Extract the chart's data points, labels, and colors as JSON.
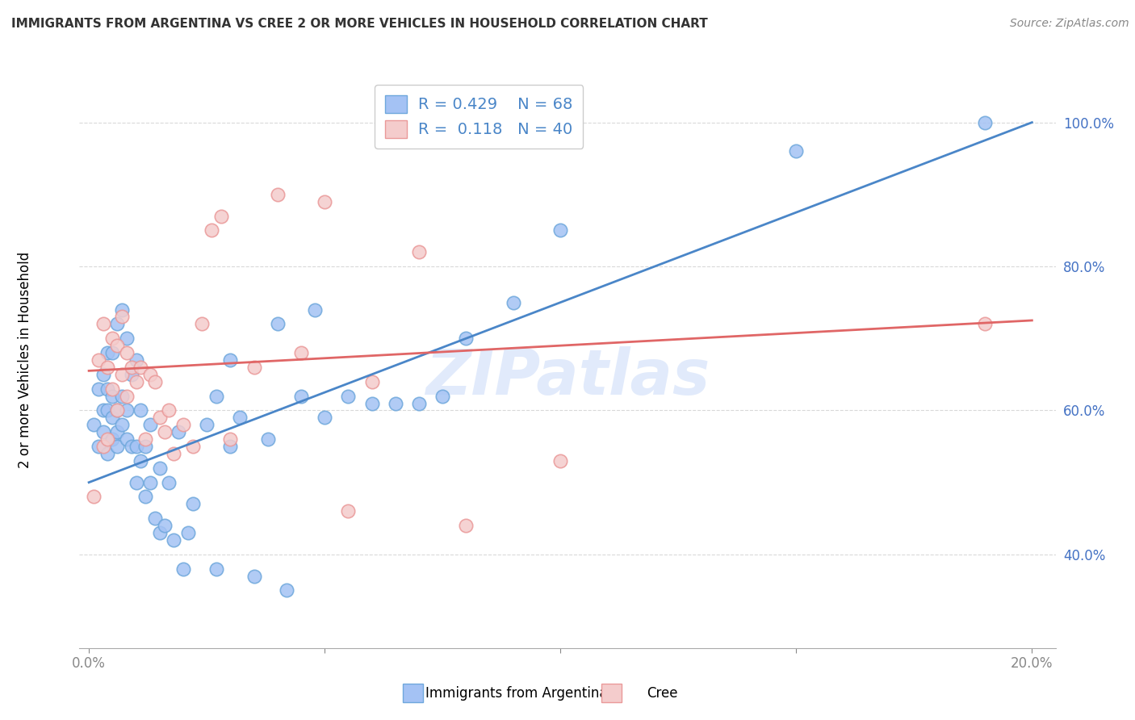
{
  "title": "IMMIGRANTS FROM ARGENTINA VS CREE 2 OR MORE VEHICLES IN HOUSEHOLD CORRELATION CHART",
  "source": "Source: ZipAtlas.com",
  "ylabel": "2 or more Vehicles in Household",
  "xlabel_vals": [
    0.0,
    0.05,
    0.1,
    0.15,
    0.2
  ],
  "xlabel_ticks_show": [
    "0.0%",
    "",
    "",
    "",
    "20.0%"
  ],
  "ylabel_ticks": [
    "40.0%",
    "60.0%",
    "80.0%",
    "100.0%"
  ],
  "ylabel_vals": [
    0.4,
    0.6,
    0.8,
    1.0
  ],
  "xlim": [
    -0.002,
    0.205
  ],
  "ylim": [
    0.27,
    1.07
  ],
  "legend_r1": "R = 0.429",
  "legend_n1": "N = 68",
  "legend_r2": "R =  0.118",
  "legend_n2": "N = 40",
  "blue_color": "#a4c2f4",
  "pink_color": "#f4cccc",
  "blue_dot_edge": "#6fa8dc",
  "pink_dot_edge": "#ea9999",
  "blue_line_color": "#4a86c8",
  "pink_line_color": "#e06666",
  "axis_tick_color": "#4472c4",
  "title_color": "#333333",
  "watermark_color": "#c9daf8",
  "watermark": "ZIPatlas",
  "argentina_x": [
    0.001,
    0.002,
    0.002,
    0.003,
    0.003,
    0.003,
    0.004,
    0.004,
    0.004,
    0.004,
    0.005,
    0.005,
    0.005,
    0.005,
    0.006,
    0.006,
    0.006,
    0.006,
    0.007,
    0.007,
    0.007,
    0.008,
    0.008,
    0.008,
    0.009,
    0.009,
    0.01,
    0.01,
    0.01,
    0.011,
    0.011,
    0.012,
    0.012,
    0.013,
    0.013,
    0.014,
    0.015,
    0.015,
    0.016,
    0.017,
    0.018,
    0.019,
    0.02,
    0.021,
    0.022,
    0.025,
    0.027,
    0.027,
    0.03,
    0.03,
    0.032,
    0.035,
    0.038,
    0.04,
    0.042,
    0.045,
    0.048,
    0.05,
    0.055,
    0.06,
    0.065,
    0.07,
    0.075,
    0.08,
    0.09,
    0.1,
    0.15,
    0.19
  ],
  "argentina_y": [
    0.58,
    0.55,
    0.63,
    0.57,
    0.6,
    0.65,
    0.54,
    0.6,
    0.63,
    0.68,
    0.56,
    0.59,
    0.62,
    0.68,
    0.55,
    0.57,
    0.6,
    0.72,
    0.58,
    0.62,
    0.74,
    0.56,
    0.6,
    0.7,
    0.55,
    0.65,
    0.5,
    0.55,
    0.67,
    0.53,
    0.6,
    0.48,
    0.55,
    0.5,
    0.58,
    0.45,
    0.43,
    0.52,
    0.44,
    0.5,
    0.42,
    0.57,
    0.38,
    0.43,
    0.47,
    0.58,
    0.38,
    0.62,
    0.55,
    0.67,
    0.59,
    0.37,
    0.56,
    0.72,
    0.35,
    0.62,
    0.74,
    0.59,
    0.62,
    0.61,
    0.61,
    0.61,
    0.62,
    0.7,
    0.75,
    0.85,
    0.96,
    1.0
  ],
  "cree_x": [
    0.001,
    0.002,
    0.003,
    0.003,
    0.004,
    0.004,
    0.005,
    0.005,
    0.006,
    0.006,
    0.007,
    0.007,
    0.008,
    0.008,
    0.009,
    0.01,
    0.011,
    0.012,
    0.013,
    0.014,
    0.015,
    0.016,
    0.017,
    0.018,
    0.02,
    0.022,
    0.024,
    0.026,
    0.028,
    0.03,
    0.035,
    0.04,
    0.045,
    0.05,
    0.055,
    0.06,
    0.07,
    0.08,
    0.1,
    0.19
  ],
  "cree_y": [
    0.48,
    0.67,
    0.55,
    0.72,
    0.56,
    0.66,
    0.63,
    0.7,
    0.6,
    0.69,
    0.65,
    0.73,
    0.62,
    0.68,
    0.66,
    0.64,
    0.66,
    0.56,
    0.65,
    0.64,
    0.59,
    0.57,
    0.6,
    0.54,
    0.58,
    0.55,
    0.72,
    0.85,
    0.87,
    0.56,
    0.66,
    0.9,
    0.68,
    0.89,
    0.46,
    0.64,
    0.82,
    0.44,
    0.53,
    0.72
  ],
  "blue_trend_x": [
    0.0,
    0.2
  ],
  "blue_trend_y": [
    0.5,
    1.0
  ],
  "pink_trend_x": [
    0.0,
    0.2
  ],
  "pink_trend_y": [
    0.655,
    0.725
  ],
  "grid_color": "#d9d9d9",
  "bottom_legend_blue_label": "Immigrants from Argentina",
  "bottom_legend_pink_label": "Cree"
}
